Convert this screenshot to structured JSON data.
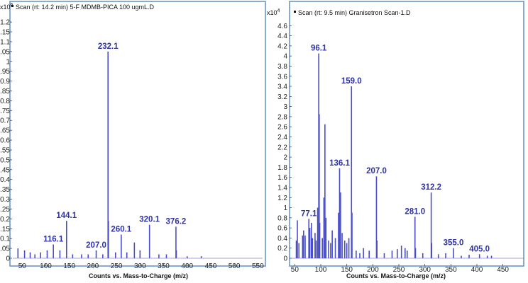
{
  "colors": {
    "frame": "#6a96c9",
    "peak": "#4a4ec4",
    "peak_label": "#2f33a8",
    "axis_text": "#222222"
  },
  "chart_data": [
    {
      "type": "bar",
      "header": "Scan (rt: 14.2 min) 5-F MDMB-PICA 100 ugmL.D",
      "y_exponent_label": "x10",
      "y_exponent_power": "6",
      "xlabel": "Counts vs. Mass-to-Charge (m/z)",
      "xlim": [
        30,
        560
      ],
      "ylim": [
        0,
        1.24
      ],
      "x_ticks": [
        "50",
        "100",
        "150",
        "200",
        "250",
        "300",
        "350",
        "400",
        "450",
        "500",
        "550"
      ],
      "y_ticks": [
        "0",
        "0.05",
        "0.1",
        "0.15",
        "0.2",
        "0.25",
        "0.3",
        "0.35",
        "0.4",
        "0.45",
        "0.5",
        "0.55",
        "0.6",
        "0.65",
        "0.7",
        "0.75",
        "0.8",
        "0.85",
        "0.9",
        "0.95",
        "1",
        "1.05",
        "1.1",
        "1.15",
        "1.2"
      ],
      "peaks": [
        {
          "mz": 41,
          "y": 0.05
        },
        {
          "mz": 55,
          "y": 0.04
        },
        {
          "mz": 67,
          "y": 0.03
        },
        {
          "mz": 77,
          "y": 0.02
        },
        {
          "mz": 89,
          "y": 0.03
        },
        {
          "mz": 103,
          "y": 0.04
        },
        {
          "mz": 116.1,
          "y": 0.07
        },
        {
          "mz": 130,
          "y": 0.04
        },
        {
          "mz": 144.1,
          "y": 0.19
        },
        {
          "mz": 157,
          "y": 0.02
        },
        {
          "mz": 176,
          "y": 0.02
        },
        {
          "mz": 190,
          "y": 0.02
        },
        {
          "mz": 207.0,
          "y": 0.04
        },
        {
          "mz": 221,
          "y": 0.02
        },
        {
          "mz": 232.1,
          "y": 1.05
        },
        {
          "mz": 233,
          "y": 0.19
        },
        {
          "mz": 248,
          "y": 0.03
        },
        {
          "mz": 260.1,
          "y": 0.12
        },
        {
          "mz": 272,
          "y": 0.03
        },
        {
          "mz": 288,
          "y": 0.08
        },
        {
          "mz": 300,
          "y": 0.04
        },
        {
          "mz": 320.1,
          "y": 0.17
        },
        {
          "mz": 340,
          "y": 0.02
        },
        {
          "mz": 356,
          "y": 0.02
        },
        {
          "mz": 376.2,
          "y": 0.16
        },
        {
          "mz": 377,
          "y": 0.04
        },
        {
          "mz": 400,
          "y": 0.01
        },
        {
          "mz": 430,
          "y": 0.01
        }
      ],
      "labels": [
        {
          "text": "116.1",
          "mz": 116.1,
          "y": 0.07
        },
        {
          "text": "144.1",
          "mz": 144.1,
          "y": 0.19
        },
        {
          "text": "207.0",
          "mz": 207.0,
          "y": 0.04
        },
        {
          "text": "232.1",
          "mz": 232.1,
          "y": 1.05
        },
        {
          "text": "260.1",
          "mz": 260.1,
          "y": 0.12
        },
        {
          "text": "320.1",
          "mz": 320.1,
          "y": 0.17
        },
        {
          "text": "376.2",
          "mz": 376.2,
          "y": 0.16
        }
      ]
    },
    {
      "type": "bar",
      "header": "Scan (rt: 9.5 min) Granisetron Scan-1.D",
      "y_exponent_label": "x10",
      "y_exponent_power": "4",
      "xlabel": "Counts vs. Mass-to-Charge (m/z)",
      "xlim": [
        40,
        490
      ],
      "ylim": [
        0,
        4.8
      ],
      "x_ticks": [
        "50",
        "100",
        "150",
        "200",
        "250",
        "300",
        "350",
        "400",
        "450"
      ],
      "y_ticks": [
        "0",
        "0.2",
        "0.4",
        "0.6",
        "0.8",
        "1",
        "1.2",
        "1.4",
        "1.6",
        "1.8",
        "2",
        "2.2",
        "2.4",
        "2.6",
        "2.8",
        "3",
        "3.2",
        "3.4",
        "3.6",
        "3.8",
        "4",
        "4.2",
        "4.4",
        "4.6"
      ],
      "peaks": [
        {
          "mz": 53,
          "y": 0.35
        },
        {
          "mz": 55,
          "y": 0.75
        },
        {
          "mz": 58,
          "y": 0.3
        },
        {
          "mz": 65,
          "y": 0.45
        },
        {
          "mz": 67,
          "y": 0.55
        },
        {
          "mz": 70,
          "y": 0.45
        },
        {
          "mz": 77.1,
          "y": 0.78
        },
        {
          "mz": 79,
          "y": 0.6
        },
        {
          "mz": 82,
          "y": 0.7
        },
        {
          "mz": 84,
          "y": 0.4
        },
        {
          "mz": 89,
          "y": 0.5
        },
        {
          "mz": 91,
          "y": 0.35
        },
        {
          "mz": 94,
          "y": 1.0
        },
        {
          "mz": 96.1,
          "y": 4.05
        },
        {
          "mz": 97,
          "y": 2.85
        },
        {
          "mz": 98,
          "y": 0.7
        },
        {
          "mz": 103,
          "y": 0.4
        },
        {
          "mz": 106,
          "y": 1.2
        },
        {
          "mz": 108,
          "y": 2.65
        },
        {
          "mz": 110,
          "y": 0.8
        },
        {
          "mz": 115,
          "y": 0.35
        },
        {
          "mz": 119,
          "y": 0.3
        },
        {
          "mz": 122,
          "y": 0.55
        },
        {
          "mz": 128,
          "y": 0.4
        },
        {
          "mz": 134,
          "y": 0.9
        },
        {
          "mz": 136.1,
          "y": 1.78
        },
        {
          "mz": 138,
          "y": 1.3
        },
        {
          "mz": 141,
          "y": 0.5
        },
        {
          "mz": 146,
          "y": 0.35
        },
        {
          "mz": 150,
          "y": 0.3
        },
        {
          "mz": 154,
          "y": 0.4
        },
        {
          "mz": 159.0,
          "y": 3.4
        },
        {
          "mz": 160,
          "y": 0.9
        },
        {
          "mz": 168,
          "y": 0.15
        },
        {
          "mz": 175,
          "y": 0.1
        },
        {
          "mz": 182,
          "y": 0.2
        },
        {
          "mz": 193,
          "y": 0.15
        },
        {
          "mz": 207.0,
          "y": 1.62
        },
        {
          "mz": 208,
          "y": 0.35
        },
        {
          "mz": 222,
          "y": 0.1
        },
        {
          "mz": 237,
          "y": 0.15
        },
        {
          "mz": 247,
          "y": 0.18
        },
        {
          "mz": 255,
          "y": 0.25
        },
        {
          "mz": 262,
          "y": 0.2
        },
        {
          "mz": 266,
          "y": 0.15
        },
        {
          "mz": 281.0,
          "y": 0.82
        },
        {
          "mz": 282,
          "y": 0.2
        },
        {
          "mz": 296,
          "y": 0.1
        },
        {
          "mz": 312.2,
          "y": 1.3
        },
        {
          "mz": 313,
          "y": 0.3
        },
        {
          "mz": 326,
          "y": 0.08
        },
        {
          "mz": 340,
          "y": 0.1
        },
        {
          "mz": 355.0,
          "y": 0.2
        },
        {
          "mz": 370,
          "y": 0.05
        },
        {
          "mz": 385,
          "y": 0.07
        },
        {
          "mz": 405.0,
          "y": 0.08
        },
        {
          "mz": 420,
          "y": 0.05
        },
        {
          "mz": 428,
          "y": 0.05
        }
      ],
      "labels": [
        {
          "text": "77.1",
          "mz": 77.1,
          "y": 0.78
        },
        {
          "text": "96.1",
          "mz": 96.1,
          "y": 4.05
        },
        {
          "text": "136.1",
          "mz": 136.1,
          "y": 1.78
        },
        {
          "text": "159.0",
          "mz": 159.0,
          "y": 3.4
        },
        {
          "text": "207.0",
          "mz": 207.0,
          "y": 1.62
        },
        {
          "text": "281.0",
          "mz": 281.0,
          "y": 0.82
        },
        {
          "text": "312.2",
          "mz": 312.2,
          "y": 1.3
        },
        {
          "text": "355.0",
          "mz": 355.0,
          "y": 0.2
        },
        {
          "text": "405.0",
          "mz": 405.0,
          "y": 0.08
        }
      ]
    }
  ]
}
